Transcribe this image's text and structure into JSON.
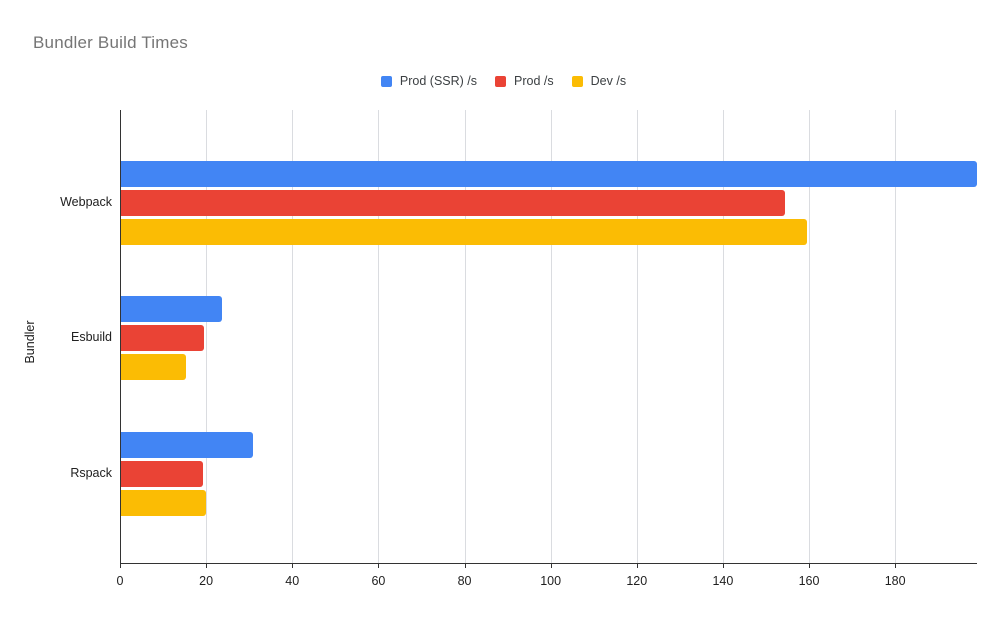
{
  "chart_data": {
    "type": "bar",
    "orientation": "horizontal",
    "title": "Bundler Build Times",
    "categories": [
      "Webpack",
      "Esbuild",
      "Rspack"
    ],
    "series": [
      {
        "name": "Prod (SSR) /s",
        "color": "#4285F4",
        "values": [
          199.0,
          23.6,
          30.8
        ]
      },
      {
        "name": "Prod /s",
        "color": "#EA4335",
        "values": [
          154.4,
          19.5,
          19.2
        ]
      },
      {
        "name": "Dev /s",
        "color": "#FBBC04",
        "values": [
          159.5,
          15.4,
          20.0
        ]
      }
    ],
    "xlabel": "",
    "ylabel": "Bundler",
    "xlim": [
      0,
      199
    ],
    "x_ticks": [
      0,
      20,
      40,
      60,
      80,
      100,
      120,
      140,
      160,
      180
    ],
    "grid": "vertical-only",
    "legend_position": "top-center",
    "title_color": "#757575",
    "axis_color": "#333333",
    "gridline_color": "#dadce0",
    "background_color": "#ffffff"
  }
}
